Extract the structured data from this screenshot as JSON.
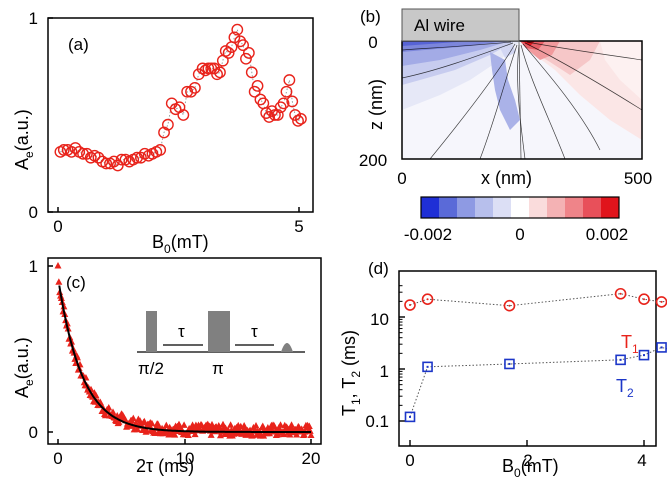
{
  "chart_data": [
    {
      "panel": "(a)",
      "type": "scatter",
      "xlabel": "B",
      "xlabel_sub": "0",
      "xlabel_unit": "(mT)",
      "ylabel": "A",
      "ylabel_sub": "e",
      "ylabel_unit": "(a.u.)",
      "xlim": [
        -0.2,
        5.3
      ],
      "ylim": [
        0,
        1.0
      ],
      "xticks": [
        "0",
        "5"
      ],
      "yticks": [
        "0",
        "1"
      ],
      "marker": "open-circle",
      "color": "#e8231b",
      "connector": "dotted",
      "x": [
        0.05,
        0.12,
        0.2,
        0.28,
        0.36,
        0.44,
        0.52,
        0.6,
        0.68,
        0.76,
        0.84,
        0.92,
        1.0,
        1.08,
        1.16,
        1.24,
        1.32,
        1.4,
        1.48,
        1.56,
        1.64,
        1.72,
        1.8,
        1.88,
        1.96,
        2.04,
        2.12,
        2.2,
        2.28,
        2.36,
        2.44,
        2.52,
        2.6,
        2.68,
        2.76,
        2.84,
        2.92,
        3.0,
        3.06,
        3.12,
        3.18,
        3.24,
        3.3,
        3.36,
        3.42,
        3.48,
        3.54,
        3.6,
        3.66,
        3.72,
        3.78,
        3.84,
        3.9,
        3.96,
        4.02,
        4.08,
        4.14,
        4.2,
        4.26,
        4.32,
        4.38,
        4.44,
        4.5,
        4.56,
        4.62,
        4.68,
        4.74,
        4.8,
        4.86,
        4.92,
        4.98,
        5.04
      ],
      "y": [
        0.31,
        0.32,
        0.32,
        0.31,
        0.33,
        0.31,
        0.3,
        0.3,
        0.28,
        0.29,
        0.28,
        0.26,
        0.25,
        0.25,
        0.26,
        0.24,
        0.27,
        0.27,
        0.26,
        0.27,
        0.28,
        0.28,
        0.3,
        0.29,
        0.3,
        0.31,
        0.32,
        0.41,
        0.45,
        0.56,
        0.53,
        0.54,
        0.5,
        0.62,
        0.62,
        0.64,
        0.71,
        0.74,
        0.73,
        0.74,
        0.74,
        0.74,
        0.71,
        0.72,
        0.78,
        0.83,
        0.82,
        0.85,
        0.9,
        0.94,
        0.88,
        0.86,
        0.79,
        0.82,
        0.72,
        0.62,
        0.65,
        0.58,
        0.56,
        0.51,
        0.49,
        0.52,
        0.5,
        0.5,
        0.54,
        0.56,
        0.62,
        0.68,
        0.57,
        0.5,
        0.47,
        0.48
      ]
    },
    {
      "panel": "(b)",
      "type": "heatmap",
      "xlabel": "x (nm)",
      "ylabel": "z (nm)",
      "xlim": [
        0,
        500
      ],
      "ylim": [
        200,
        0
      ],
      "xticks": [
        "0",
        "500"
      ],
      "yticks": [
        "0",
        "200"
      ],
      "inset_label": "Al wire",
      "colorbar": {
        "min": -0.002,
        "max": 0.002,
        "ticks": [
          "-0.002",
          "0",
          "0.002"
        ],
        "colors": [
          "#1f2fd6",
          "#5a6ad8",
          "#8e9ae3",
          "#b7bfec",
          "#dcdff5",
          "#ffffff",
          "#fadcdc",
          "#f4b2b4",
          "#ef8489",
          "#e8505a",
          "#e0141c"
        ]
      }
    },
    {
      "panel": "(c)",
      "type": "scatter",
      "xlabel": "2τ (ms)",
      "ylabel": "A",
      "ylabel_sub": "e",
      "ylabel_unit": "(a.u.)",
      "xlim": [
        -0.6,
        20.8
      ],
      "ylim": [
        -0.05,
        1.05
      ],
      "xticks": [
        "0",
        "10",
        "20"
      ],
      "yticks": [
        "0",
        "1"
      ],
      "marker": "filled-triangle",
      "color": "#e8231b",
      "fit": {
        "color": "#000000",
        "amplitude": 0.93,
        "time_constant_ms": 1.9
      },
      "inset_labels": [
        "τ",
        "τ",
        "π/2",
        "π"
      ]
    },
    {
      "panel": "(d)",
      "type": "scatter",
      "xlabel": "B",
      "xlabel_sub": "0",
      "xlabel_unit": "(mT)",
      "ylabel": "T",
      "ylabel_unit": "(ms)",
      "ylabel_parts": [
        "T",
        "1",
        ", T",
        "2",
        " (ms)"
      ],
      "xlim": [
        -0.2,
        5.0
      ],
      "ylim": [
        0.06,
        60
      ],
      "yscale": "log",
      "xticks": [
        "0",
        "2",
        "4"
      ],
      "yticks": [
        "0.1",
        "1",
        "10"
      ],
      "series": [
        {
          "name": "T",
          "name_sub": "1",
          "color": "#e8231b",
          "marker": "open-circle",
          "x": [
            0.0,
            0.3,
            1.7,
            3.6,
            4.0,
            4.3,
            4.8
          ],
          "y": [
            17,
            22,
            16.5,
            28,
            22,
            19.5,
            23
          ]
        },
        {
          "name": "T",
          "name_sub": "2",
          "color": "#1c36c8",
          "marker": "open-square",
          "x": [
            0.0,
            0.3,
            1.7,
            3.6,
            4.0,
            4.3,
            4.8
          ],
          "y": [
            0.12,
            1.1,
            1.25,
            1.5,
            1.85,
            2.6,
            1.9
          ]
        }
      ]
    }
  ],
  "panels": {
    "a": {
      "tag": "(a)",
      "x0": "0",
      "x5": "5",
      "y0": "0",
      "y1": "1",
      "xl": "B",
      "xs": "0",
      "xu": "(mT)",
      "yl": "A",
      "ys": "e",
      "yu": "(a.u.)"
    },
    "b": {
      "tag": "(b)",
      "wire": "Al wire",
      "x0": "0",
      "x500": "500",
      "z0": "0",
      "z200": "200",
      "xl": "x (nm)",
      "zl": "z (nm)",
      "cb": [
        "-0.002",
        "0",
        "0.002"
      ]
    },
    "c": {
      "tag": "(c)",
      "x0": "0",
      "x10": "10",
      "x20": "20",
      "y0": "0",
      "y1": "1",
      "xl": "2τ (ms)",
      "yl": "A",
      "ys": "e",
      "yu": "(a.u.)",
      "tau1": "τ",
      "tau2": "τ",
      "pi2": "π/2",
      "pi": "π"
    },
    "d": {
      "tag": "(d)",
      "x0": "0",
      "x2": "2",
      "x4": "4",
      "y01": "0.1",
      "y1": "1",
      "y10": "10",
      "xl": "B",
      "xs": "0",
      "xu": "(mT)",
      "yl1": "T",
      "ys1": "1",
      "yl2": ", T",
      "ys2": "2",
      "yu": " (ms)",
      "t1": "T",
      "t1s": "1",
      "t2": "T",
      "t2s": "2"
    }
  }
}
